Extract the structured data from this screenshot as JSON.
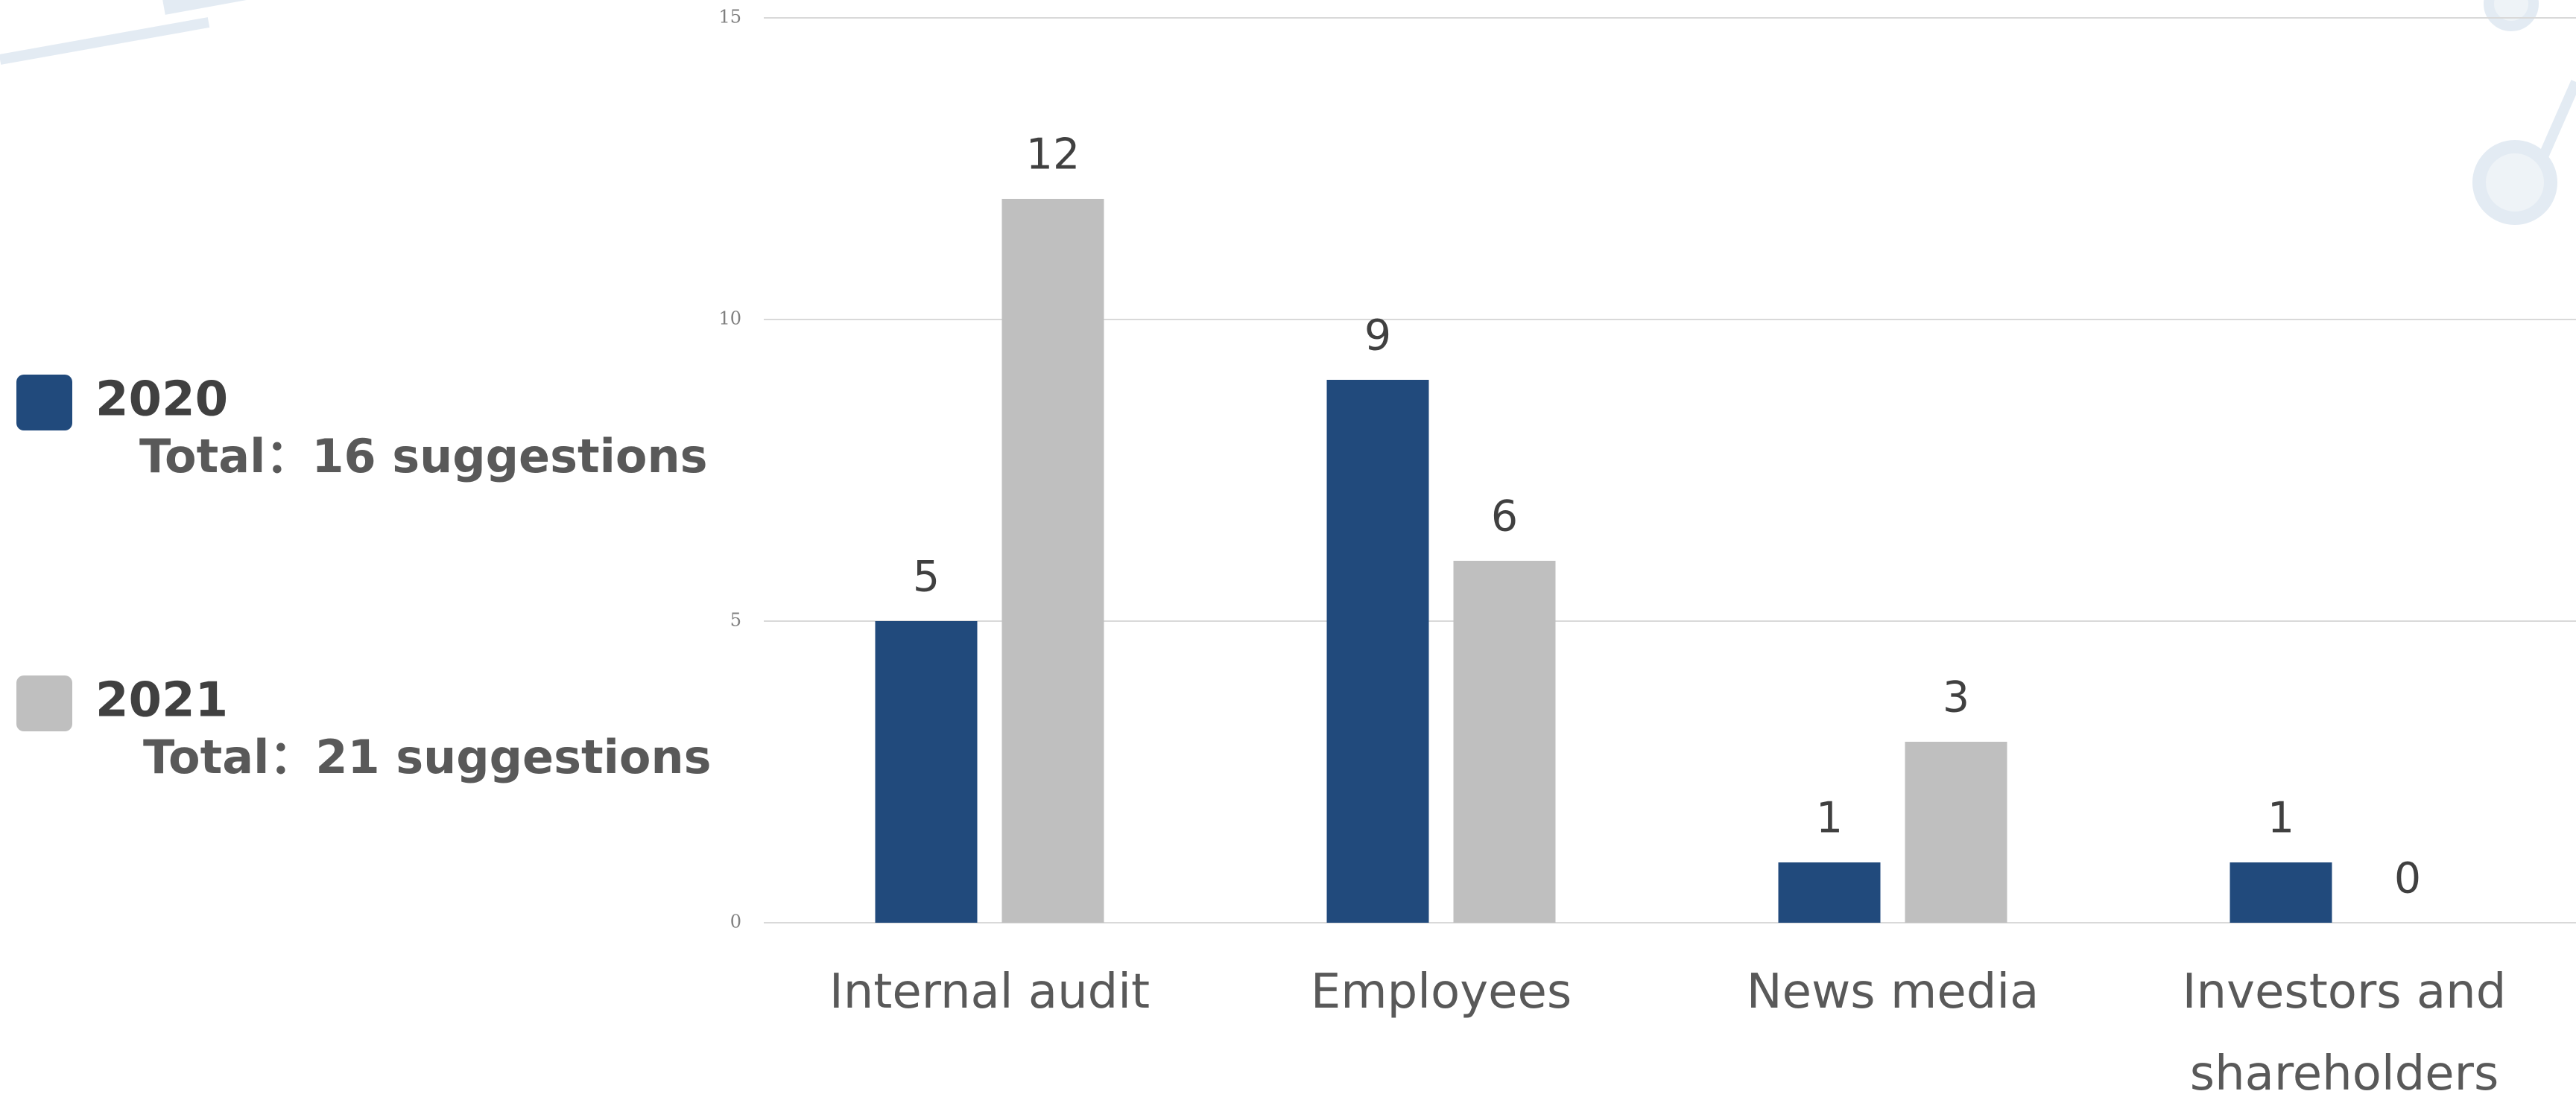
{
  "chart_data": {
    "type": "bar",
    "categories": [
      "Internal audit",
      "Employees",
      "News media",
      "Investors and shareholders"
    ],
    "series": [
      {
        "name": "2020",
        "color": "#214a7c",
        "values": [
          5,
          9,
          1,
          1
        ],
        "total_label": "Total：16 suggestions"
      },
      {
        "name": "2021",
        "color": "#bfbfbf",
        "values": [
          12,
          6,
          3,
          0
        ],
        "total_label": "Total：21 suggestions"
      }
    ],
    "ylim": [
      0,
      15
    ],
    "yticks": [
      0,
      5,
      10,
      15
    ],
    "grid": true,
    "legend": "left"
  }
}
